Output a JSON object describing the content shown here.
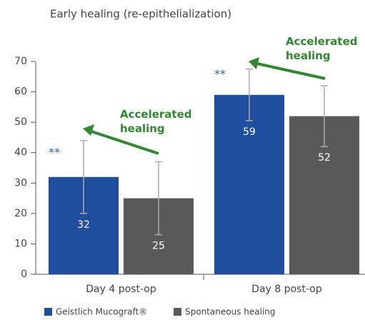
{
  "chart_data": {
    "type": "bar",
    "title": "Early healing (re-epithelialization)",
    "categories": [
      "Day 4 post-op",
      "Day 8 post-op"
    ],
    "series": [
      {
        "name": "Geistlich Mucograft®",
        "color": "#1f4e9e",
        "values": [
          32,
          59
        ],
        "errors": [
          12,
          8.5
        ]
      },
      {
        "name": "Spontaneous healing",
        "color": "#595959",
        "values": [
          25,
          52
        ],
        "errors": [
          12,
          10
        ]
      }
    ],
    "ylim": [
      0,
      70
    ],
    "yticks": [
      0,
      10,
      20,
      30,
      40,
      50,
      60,
      70
    ],
    "annotations": [
      "**",
      "**",
      "Accelerated healing",
      "Accelerated healing"
    ],
    "annotation_color": "#2e8a2e",
    "significance_color": "#2a62b5",
    "legend": "bottom"
  }
}
